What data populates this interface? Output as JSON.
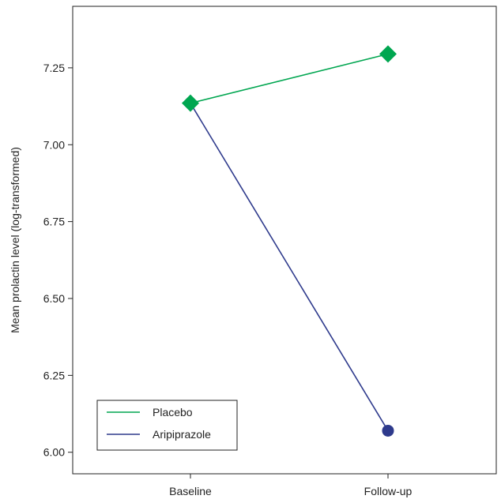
{
  "chart_data": {
    "type": "line",
    "title": "",
    "xlabel": "",
    "ylabel": "Mean prolactin level (log-transformed)",
    "categories": [
      "Baseline",
      "Follow-up"
    ],
    "ylim": [
      5.93,
      7.45
    ],
    "yticks": [
      "6.00",
      "6.25",
      "6.50",
      "6.75",
      "7.00",
      "7.25"
    ],
    "grid": false,
    "legend_position": "bottom-left",
    "series": [
      {
        "name": "Placebo",
        "values": [
          7.135,
          7.295
        ],
        "color": "#00a650",
        "marker": "diamond"
      },
      {
        "name": "Aripiprazole",
        "values": [
          7.135,
          6.07
        ],
        "color": "#2e3a8c",
        "marker": "circle"
      }
    ]
  }
}
